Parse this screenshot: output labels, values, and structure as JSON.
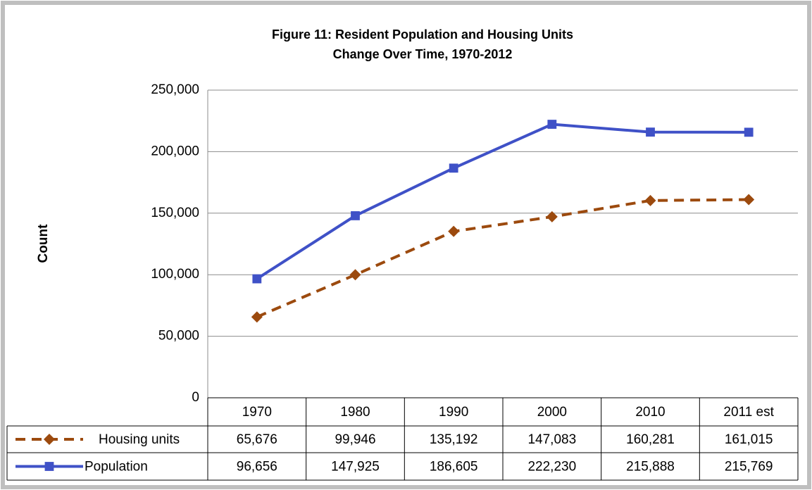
{
  "chart_data": {
    "type": "line",
    "title": [
      "Figure 11: Resident Population and Housing Units",
      "Change Over Time, 1970-2012"
    ],
    "y_label": "Count",
    "categories": [
      "1970",
      "1980",
      "1990",
      "2000",
      "2010",
      "2011 est"
    ],
    "series": [
      {
        "name": "Housing units",
        "color": "#9c4a0e",
        "dash": true,
        "marker": "diamond",
        "values": [
          65676,
          99946,
          135192,
          147083,
          160281,
          161015
        ],
        "value_labels": [
          "65,676",
          "99,946",
          "135,192",
          "147,083",
          "160,281",
          "161,015"
        ]
      },
      {
        "name": "Population",
        "color": "#3f51c7",
        "dash": false,
        "marker": "square",
        "values": [
          96656,
          147925,
          186605,
          222230,
          215888,
          215769
        ],
        "value_labels": [
          "96,656",
          "147,925",
          "186,605",
          "222,230",
          "215,888",
          "215,769"
        ]
      }
    ],
    "ylim": [
      0,
      250000
    ],
    "yticks": [
      0,
      {
        "value": 50000,
        "label": "50,000"
      },
      {
        "value": 100000,
        "label": "100,000"
      },
      {
        "value": 150000,
        "label": "150,000"
      },
      {
        "value": 200000,
        "label": "200,000"
      },
      {
        "value": 250000,
        "label": "250,000"
      }
    ],
    "grid": true
  }
}
